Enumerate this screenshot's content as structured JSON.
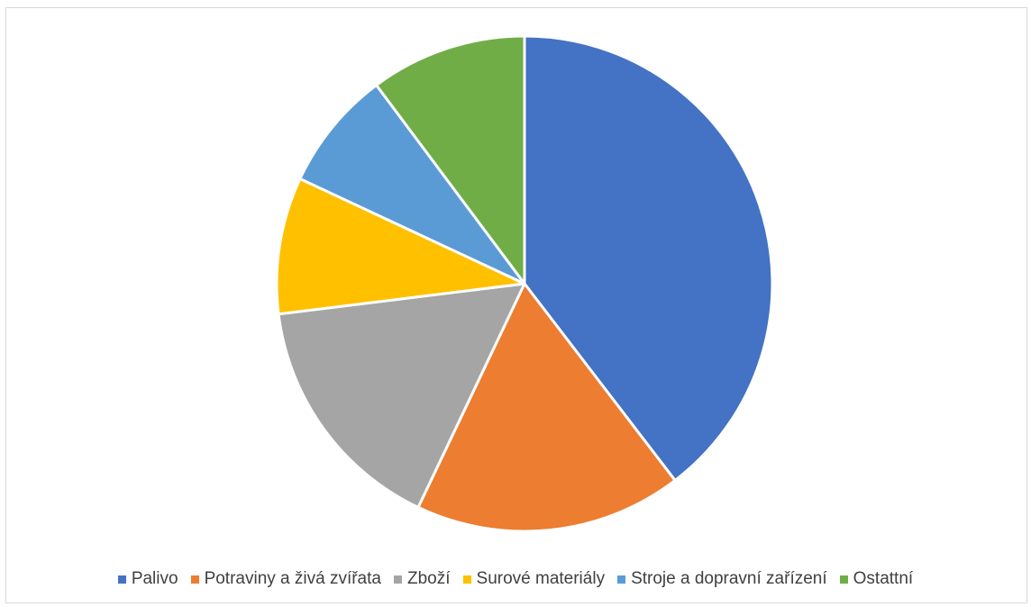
{
  "chart_data": {
    "type": "pie",
    "title": "",
    "start_angle_deg": 0,
    "direction": "clockwise",
    "legend_position": "bottom",
    "slices": [
      {
        "label": "Palivo",
        "value": 40.4,
        "color": "#4472C4"
      },
      {
        "label": "Potraviny a živá zvířata",
        "value": 17.8,
        "color": "#ED7D31"
      },
      {
        "label": "Zboží",
        "value": 16.3,
        "color": "#A5A5A5"
      },
      {
        "label": "Surové materiály",
        "value": 9.1,
        "color": "#FFC000"
      },
      {
        "label": "Stroje a dopravní zařízení",
        "value": 8.0,
        "color": "#5B9BD5"
      },
      {
        "label": "Ostattní",
        "value": 10.4,
        "color": "#70AD47"
      }
    ]
  }
}
